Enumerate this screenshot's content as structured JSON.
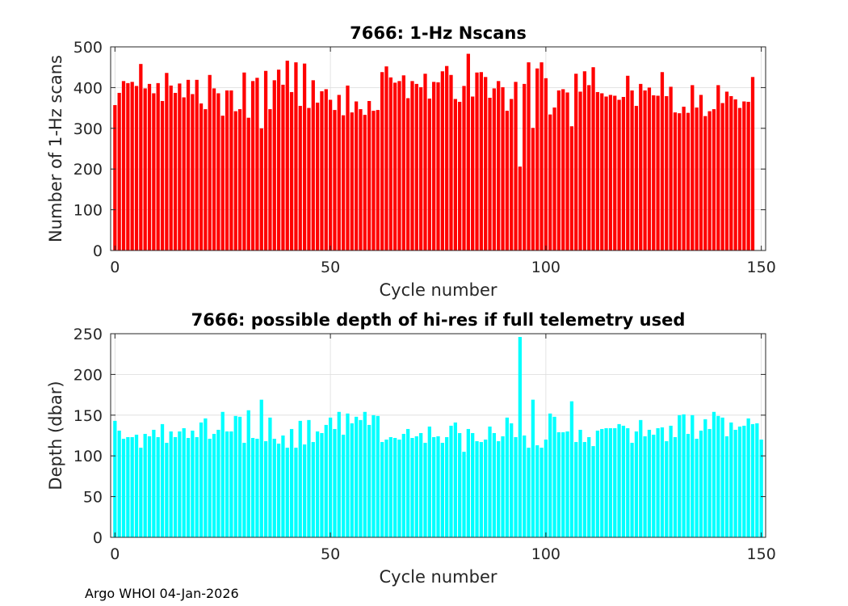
{
  "footer": "Argo WHOI 04-Jan-2026",
  "chart_data": [
    {
      "type": "bar",
      "title": "7666: 1-Hz Nscans",
      "xlabel": "Cycle number",
      "ylabel": "Number of 1-Hz scans",
      "xlim": [
        -1,
        151
      ],
      "ylim": [
        0,
        500
      ],
      "xticks": [
        0,
        50,
        100,
        150
      ],
      "yticks": [
        0,
        100,
        200,
        300,
        400,
        500
      ],
      "grid": true,
      "color": "#ff0000",
      "x_start": 0,
      "values": [
        357,
        387,
        416,
        411,
        414,
        404,
        458,
        398,
        409,
        386,
        411,
        367,
        436,
        405,
        387,
        410,
        376,
        419,
        384,
        419,
        361,
        347,
        431,
        398,
        386,
        331,
        393,
        393,
        342,
        347,
        437,
        326,
        416,
        424,
        300,
        441,
        347,
        418,
        444,
        407,
        466,
        389,
        462,
        355,
        459,
        350,
        418,
        363,
        391,
        396,
        370,
        345,
        382,
        332,
        405,
        339,
        366,
        347,
        333,
        367,
        343,
        345,
        438,
        452,
        425,
        412,
        416,
        430,
        374,
        416,
        409,
        401,
        434,
        373,
        414,
        413,
        440,
        453,
        431,
        372,
        365,
        404,
        483,
        378,
        437,
        438,
        426,
        375,
        398,
        416,
        401,
        343,
        372,
        414,
        206,
        409,
        462,
        301,
        447,
        462,
        423,
        334,
        351,
        393,
        396,
        388,
        305,
        434,
        390,
        440,
        406,
        450,
        389,
        386,
        378,
        382,
        380,
        370,
        377,
        429,
        393,
        355,
        409,
        393,
        400,
        381,
        380,
        438,
        379,
        402,
        339,
        337,
        353,
        338,
        406,
        351,
        382,
        330,
        342,
        347,
        406,
        362,
        390,
        379,
        371,
        350,
        366,
        365,
        426
      ]
    },
    {
      "type": "bar",
      "title": "7666: possible depth of hi-res if full telemetry used",
      "xlabel": "Cycle number",
      "ylabel": "Depth (dbar)",
      "xlim": [
        -1,
        151
      ],
      "ylim": [
        0,
        250
      ],
      "xticks": [
        0,
        50,
        100,
        150
      ],
      "yticks": [
        0,
        50,
        100,
        150,
        200,
        250
      ],
      "grid": true,
      "color": "#00ffff",
      "x_start": 0,
      "values": [
        143,
        131,
        121,
        123,
        123,
        126,
        110,
        127,
        124,
        132,
        123,
        139,
        116,
        130,
        123,
        130,
        134,
        122,
        131,
        123,
        141,
        146,
        121,
        127,
        132,
        154,
        130,
        130,
        149,
        148,
        116,
        156,
        122,
        121,
        169,
        118,
        147,
        121,
        115,
        125,
        110,
        133,
        110,
        143,
        114,
        144,
        117,
        130,
        128,
        138,
        147,
        133,
        154,
        126,
        152,
        140,
        148,
        144,
        154,
        138,
        150,
        149,
        117,
        120,
        123,
        122,
        120,
        127,
        133,
        122,
        124,
        128,
        116,
        136,
        123,
        124,
        116,
        123,
        137,
        141,
        128,
        105,
        133,
        128,
        118,
        117,
        120,
        136,
        128,
        118,
        124,
        147,
        140,
        123,
        246,
        125,
        110,
        169,
        113,
        110,
        120,
        152,
        148,
        129,
        129,
        130,
        167,
        117,
        132,
        117,
        123,
        112,
        131,
        133,
        134,
        134,
        134,
        139,
        137,
        134,
        116,
        130,
        144,
        124,
        132,
        126,
        134,
        135,
        118,
        137,
        123,
        150,
        151,
        127,
        150,
        121,
        131,
        145,
        133,
        154,
        149,
        147,
        124,
        141,
        132,
        136,
        137,
        146,
        139,
        140,
        120
      ]
    }
  ]
}
